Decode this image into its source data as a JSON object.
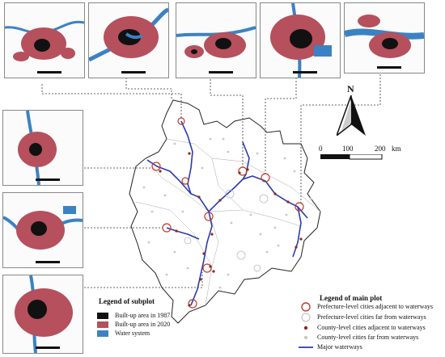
{
  "subplot_legend": {
    "title": "Legend of subplot",
    "items": [
      {
        "label": "Built-up area in 1987",
        "color": "#111111"
      },
      {
        "label": "Built-up area in 2020",
        "color": "#b5505c"
      },
      {
        "label": "Water system",
        "color": "#3b82c4"
      }
    ]
  },
  "main_legend": {
    "title": "Legend of main plot",
    "items": [
      {
        "label": "Prefecture-level cities adjacent to waterways",
        "symbol": "red-ring"
      },
      {
        "label": "Prefecture-level cities far from waterways",
        "symbol": "grey-ring"
      },
      {
        "label": "County-level cities adjacent to waterways",
        "symbol": "red-dot"
      },
      {
        "label": "County-level cities far from waterways",
        "symbol": "grey-dot"
      },
      {
        "label": "Major waterways",
        "symbol": "blue-line"
      }
    ]
  },
  "north_arrow": {
    "label": "N"
  },
  "scale_bar": {
    "ticks": [
      "0",
      "100",
      "200"
    ],
    "unit": "km"
  },
  "colors": {
    "waterway": "#2a3cb0",
    "built_1987": "#111111",
    "built_2020": "#b5505c",
    "water": "#3b82c4",
    "boundary": "#222222",
    "ring_red": "#c23a2a"
  }
}
